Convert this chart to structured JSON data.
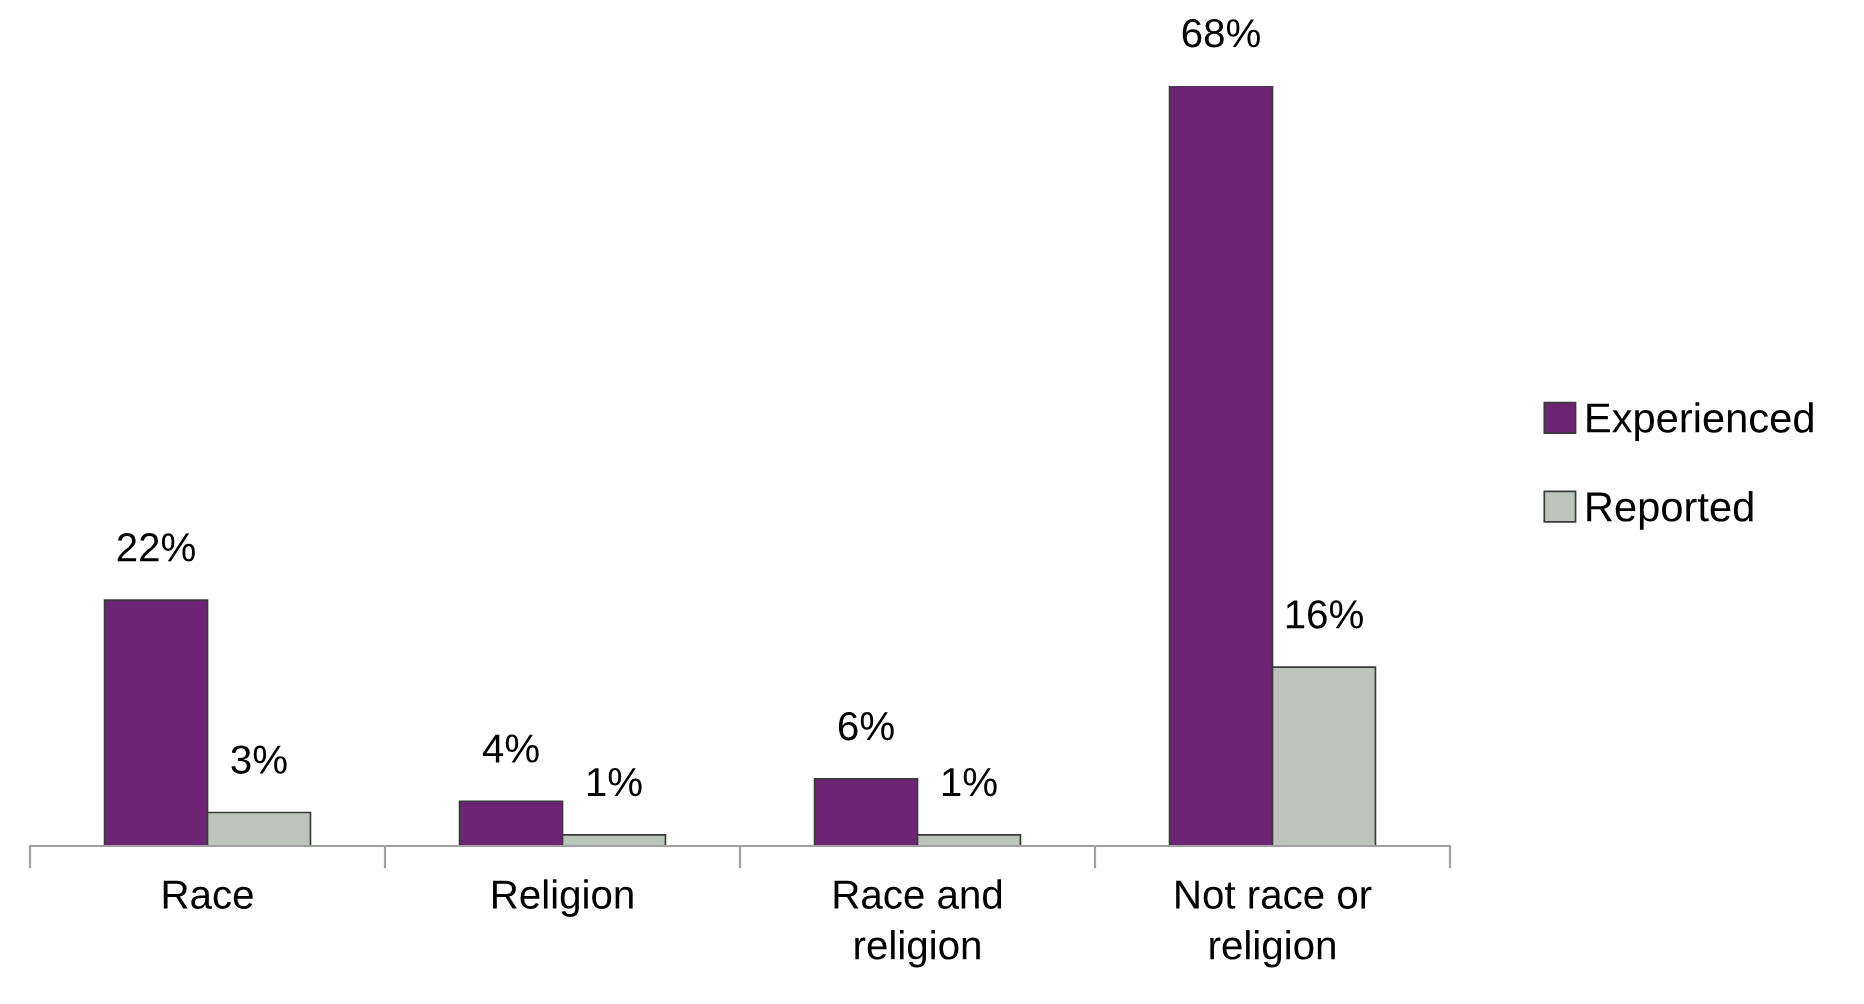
{
  "chart_data": {
    "type": "bar",
    "categories": [
      "Race",
      "Religion",
      "Race and\nreligion",
      "Not race or\nreligion"
    ],
    "series": [
      {
        "name": "Experienced",
        "color": "#6e2474",
        "values": [
          22,
          4,
          6,
          68
        ],
        "value_labels": [
          "22%",
          "4%",
          "6%",
          "68%"
        ]
      },
      {
        "name": "Reported",
        "color": "#bcc5bc",
        "values": [
          3,
          1,
          1,
          16
        ],
        "value_labels": [
          "3%",
          "1%",
          "1%",
          "16%"
        ]
      }
    ],
    "legend": "right",
    "grid": false,
    "tick_labels": "x"
  }
}
